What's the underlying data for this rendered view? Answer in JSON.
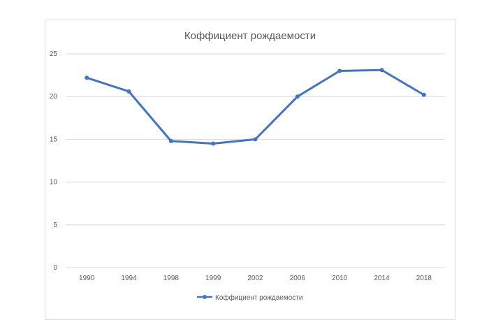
{
  "colors": {
    "series": "#4472c4",
    "grid": "#d9d9d9",
    "text": "#595959"
  },
  "chart_data": {
    "type": "line",
    "title": "Коффициент рождаемости",
    "xlabel": "",
    "ylabel": "",
    "categories": [
      "1990",
      "1994",
      "1998",
      "1999",
      "2002",
      "2006",
      "2010",
      "2014",
      "2018"
    ],
    "series": [
      {
        "name": "Коффициент рождаемости",
        "values": [
          22.2,
          20.6,
          14.8,
          14.5,
          15.0,
          20.0,
          23.0,
          23.1,
          20.2
        ]
      }
    ],
    "ylim": [
      0,
      25
    ],
    "yticks": [
      "0",
      "5",
      "10",
      "15",
      "20",
      "25"
    ],
    "grid": true,
    "legend": "bottom"
  }
}
